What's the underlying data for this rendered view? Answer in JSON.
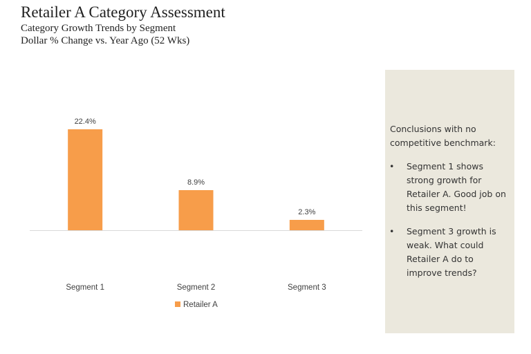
{
  "header": {
    "title": "Retailer A Category Assessment",
    "subtitle_line1": "Category Growth Trends by Segment",
    "subtitle_line2": "Dollar % Change vs. Year Ago (52 Wks)"
  },
  "chart_data": {
    "type": "bar",
    "categories": [
      "Segment 1",
      "Segment 2",
      "Segment 3"
    ],
    "series": [
      {
        "name": "Retailer A",
        "values": [
          22.4,
          8.9,
          2.3
        ],
        "labels": [
          "22.4%",
          "8.9%",
          "2.3%"
        ],
        "color": "#f79d4a"
      }
    ],
    "title": "",
    "xlabel": "",
    "ylabel": "",
    "ylim": [
      0,
      22.4
    ],
    "grid": false,
    "legend": "bottom",
    "axis_color": "#d9d9d9"
  },
  "panel": {
    "heading": "Conclusions with no competitive benchmark:",
    "bullet_glyph": "•",
    "bullets": [
      "Segment 1 shows strong growth for Retailer A. Good job on this segment!",
      "Segment 3 growth is weak.   What could Retailer A do to improve trends?"
    ],
    "background": "#ebe8dd"
  }
}
